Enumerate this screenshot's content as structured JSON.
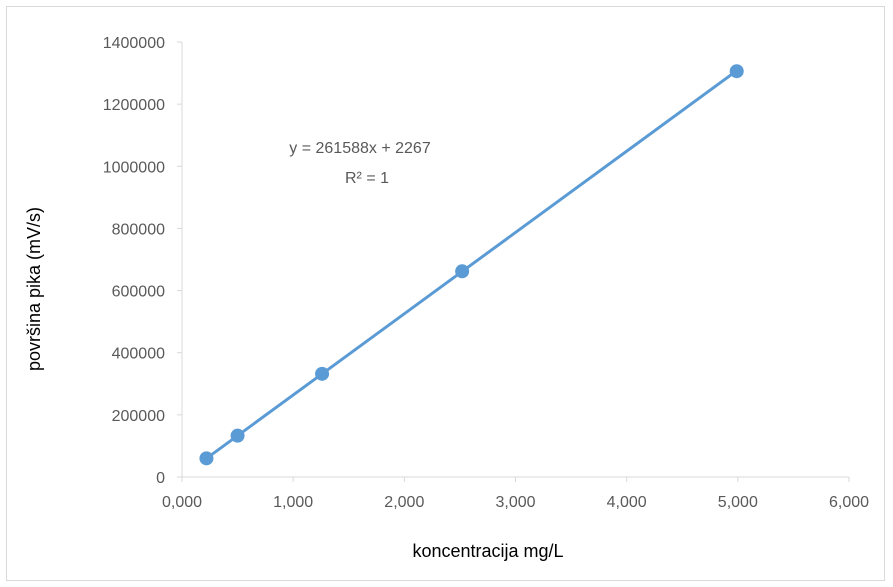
{
  "chart_data": {
    "type": "scatter",
    "title": "",
    "xlabel": "koncentracija mg/L",
    "ylabel": "površina pika (mV/s)",
    "xlim": [
      0,
      6
    ],
    "ylim": [
      0,
      1400000
    ],
    "x_ticks": [
      "0,000",
      "1,000",
      "2,000",
      "3,000",
      "4,000",
      "5,000",
      "6,000"
    ],
    "y_ticks": [
      "0",
      "200000",
      "400000",
      "600000",
      "800000",
      "1000000",
      "1200000",
      "1400000"
    ],
    "grid": "none",
    "legend": "none",
    "series": [
      {
        "color": "#5b9bd5",
        "x": [
          0.22,
          0.5,
          1.26,
          2.52,
          4.99
        ],
        "y": [
          60000,
          133000,
          332000,
          662000,
          1306000
        ]
      }
    ],
    "trendline": {
      "type": "linear",
      "slope": 261588,
      "intercept": 2267,
      "x_range": [
        0.22,
        4.99
      ],
      "equation_label": "y = 261588x + 2267",
      "r2_label": "R² = 1"
    }
  }
}
